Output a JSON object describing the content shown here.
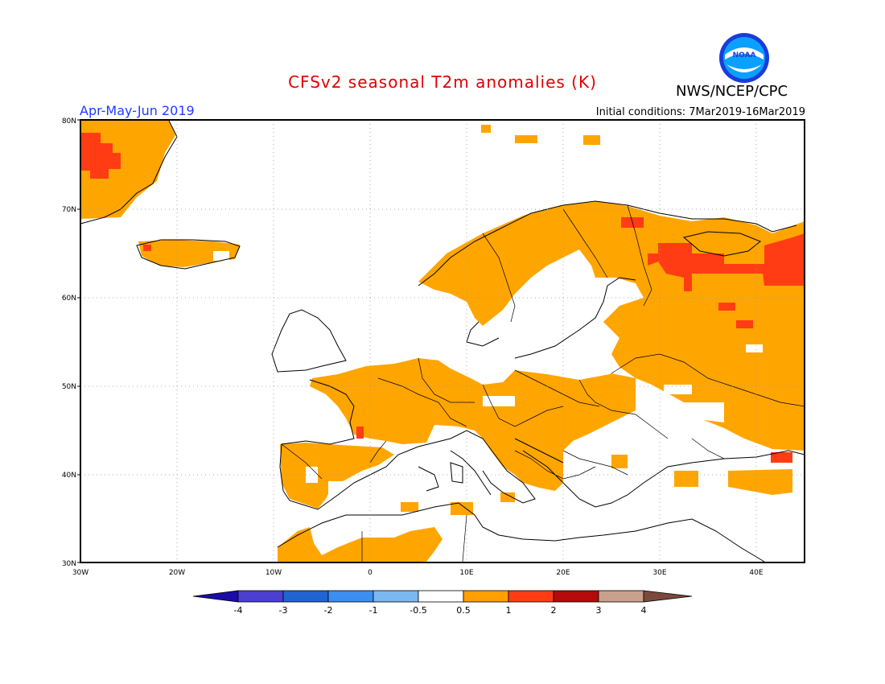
{
  "header": {
    "title": "CFSv2 seasonal T2m anomalies (K)",
    "agency": "NWS/NCEP/CPC",
    "season": "Apr-May-Jun 2019",
    "initial_conditions": "Initial conditions: 7Mar2019-16Mar2019",
    "logo_text": "NOAA"
  },
  "axes": {
    "lat_labels": [
      "80N",
      "70N",
      "60N",
      "50N",
      "40N",
      "30N"
    ],
    "lon_labels": [
      "30W",
      "20W",
      "10W",
      "0",
      "10E",
      "20E",
      "30E",
      "40E"
    ]
  },
  "colorbar": {
    "labels": [
      "-4",
      "-3",
      "-2",
      "-1",
      "-0.5",
      "0.5",
      "1",
      "2",
      "3",
      "4"
    ],
    "colors": [
      "#1a0ca8",
      "#4a3fd0",
      "#1f64d2",
      "#3c8ef0",
      "#7ab8f2",
      "#ffffff",
      "#ff9f00",
      "#ff3c14",
      "#b40a0a",
      "#c8a08c",
      "#7a4a3c"
    ]
  },
  "map_data": {
    "type": "gridded anomaly map",
    "region": "Europe, 30W-45E, 30N-80N",
    "anomaly_fill_colors": {
      "0.5-1": "#ffa500",
      "1-2": "#ff3c14"
    }
  }
}
